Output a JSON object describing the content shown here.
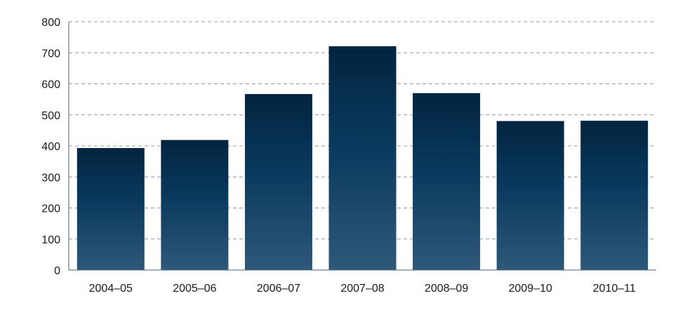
{
  "chart_data": {
    "type": "bar",
    "categories": [
      "2004–05",
      "2005–06",
      "2006–07",
      "2007–08",
      "2008–09",
      "2009–10",
      "2010–11"
    ],
    "values": [
      393,
      419,
      567,
      721,
      570,
      480,
      481
    ],
    "ylim": [
      0,
      800
    ],
    "yticks": [
      "0",
      "100",
      "200",
      "300",
      "400",
      "500",
      "600",
      "700",
      "800"
    ],
    "grid": true,
    "title": "",
    "xlabel": "",
    "ylabel": "",
    "colors": {
      "bar_top": "#02243f",
      "bar_mid": "#0a3a5e",
      "bar_bottom": "#2f5878",
      "grid": "#8a9bb0",
      "axis": "#4a6075",
      "text": "#1a1a1a"
    }
  }
}
